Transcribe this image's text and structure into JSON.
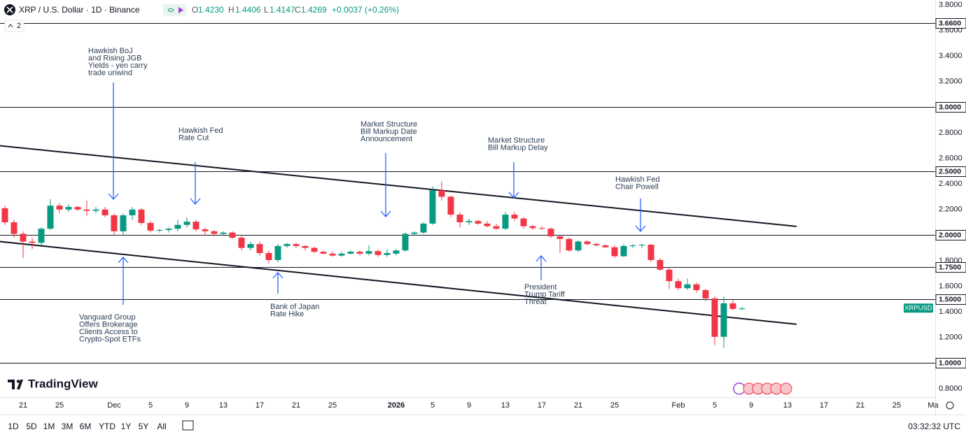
{
  "header": {
    "symbol": "XRP / U.S. Dollar · 1D · Binance",
    "o_label": "O",
    "o": "1.4230",
    "h_label": "H",
    "h": "1.4406",
    "l_label": "L",
    "l": "1.4147",
    "c_label": "C",
    "c": "1.4269",
    "change": "+0.0037 (+0.26%)",
    "indicators": "2"
  },
  "logo": "TradingView",
  "toolbar": {
    "ranges": [
      "1D",
      "5D",
      "1M",
      "3M",
      "6M",
      "YTD",
      "1Y",
      "5Y",
      "All"
    ],
    "clock": "03:32:32 UTC"
  },
  "chart_data": {
    "type": "candlestick",
    "symbol_tag": "XRPUSD",
    "up_color": "#089981",
    "down_color": "#f23645",
    "x": [
      "2025-11-19",
      "2025-11-20",
      "2025-11-21",
      "2025-11-22",
      "2025-11-23",
      "2025-11-24",
      "2025-11-25",
      "2025-11-26",
      "2025-11-27",
      "2025-11-28",
      "2025-11-29",
      "2025-11-30",
      "2025-12-01",
      "2025-12-02",
      "2025-12-03",
      "2025-12-04",
      "2025-12-05",
      "2025-12-06",
      "2025-12-07",
      "2025-12-08",
      "2025-12-09",
      "2025-12-10",
      "2025-12-11",
      "2025-12-12",
      "2025-12-13",
      "2025-12-14",
      "2025-12-15",
      "2025-12-16",
      "2025-12-17",
      "2025-12-18",
      "2025-12-19",
      "2025-12-20",
      "2025-12-21",
      "2025-12-22",
      "2025-12-23",
      "2025-12-24",
      "2025-12-25",
      "2025-12-26",
      "2025-12-27",
      "2025-12-28",
      "2025-12-29",
      "2025-12-30",
      "2025-12-31",
      "2026-01-01",
      "2026-01-02",
      "2026-01-03",
      "2026-01-04",
      "2026-01-05",
      "2026-01-06",
      "2026-01-07",
      "2026-01-08",
      "2026-01-09",
      "2026-01-10",
      "2026-01-11",
      "2026-01-12",
      "2026-01-13",
      "2026-01-14",
      "2026-01-15",
      "2026-01-16",
      "2026-01-17",
      "2026-01-18",
      "2026-01-19",
      "2026-01-20",
      "2026-01-21",
      "2026-01-22",
      "2026-01-23",
      "2026-01-24",
      "2026-01-25",
      "2026-01-26",
      "2026-01-27",
      "2026-01-28",
      "2026-01-29",
      "2026-01-30",
      "2026-01-31",
      "2026-02-01",
      "2026-02-02",
      "2026-02-03",
      "2026-02-04",
      "2026-02-05",
      "2026-02-06",
      "2026-02-07",
      "2026-02-08"
    ],
    "open": [
      2.21,
      2.1,
      2.01,
      1.95,
      1.94,
      2.05,
      2.23,
      2.2,
      2.22,
      2.2,
      2.19,
      2.2,
      2.155,
      2.03,
      2.155,
      2.2,
      2.095,
      2.035,
      2.04,
      2.05,
      2.08,
      2.105,
      2.045,
      2.03,
      2.01,
      2.02,
      1.98,
      1.9,
      1.93,
      1.86,
      1.805,
      1.915,
      1.93,
      1.915,
      1.9,
      1.87,
      1.855,
      1.84,
      1.855,
      1.87,
      1.855,
      1.875,
      1.845,
      1.855,
      1.88,
      2.01,
      2.02,
      2.09,
      2.35,
      2.3,
      2.16,
      2.1,
      2.11,
      2.09,
      2.07,
      2.05,
      2.16,
      2.13,
      2.07,
      2.055,
      2.05,
      1.99,
      1.97,
      1.88,
      1.95,
      1.93,
      1.92,
      1.905,
      1.835,
      1.915,
      1.92,
      1.925,
      1.805,
      1.73,
      1.64,
      1.585,
      1.615,
      1.57,
      1.505,
      1.205,
      1.467,
      1.423
    ],
    "high": [
      2.23,
      2.12,
      2.03,
      1.98,
      2.06,
      2.28,
      2.25,
      2.24,
      2.23,
      2.27,
      2.22,
      2.22,
      2.17,
      2.17,
      2.22,
      2.21,
      2.11,
      2.05,
      2.06,
      2.12,
      2.14,
      2.12,
      2.06,
      2.04,
      2.03,
      2.03,
      2.0,
      1.95,
      1.95,
      1.88,
      1.93,
      1.94,
      1.94,
      1.92,
      1.91,
      1.88,
      1.87,
      1.87,
      1.88,
      1.88,
      1.92,
      1.89,
      1.89,
      1.89,
      2.02,
      2.03,
      2.1,
      2.38,
      2.42,
      2.31,
      2.18,
      2.13,
      2.12,
      2.11,
      2.09,
      2.18,
      2.18,
      2.14,
      2.08,
      2.07,
      2.06,
      2.0,
      1.98,
      1.96,
      1.96,
      1.94,
      1.93,
      1.92,
      1.93,
      1.93,
      1.93,
      1.93,
      1.82,
      1.75,
      1.66,
      1.66,
      1.63,
      1.58,
      1.52,
      1.52,
      1.49,
      1.4406
    ],
    "low": [
      2.08,
      1.98,
      1.82,
      1.89,
      1.92,
      2.04,
      2.17,
      2.18,
      2.19,
      2.15,
      2.17,
      2.14,
      2.0,
      2.0,
      2.12,
      2.08,
      2.02,
      2.02,
      2.02,
      2.03,
      2.06,
      2.03,
      2.0,
      1.99,
      2.0,
      1.97,
      1.88,
      1.88,
      1.84,
      1.78,
      1.79,
      1.9,
      1.9,
      1.88,
      1.86,
      1.85,
      1.83,
      1.83,
      1.85,
      1.84,
      1.84,
      1.83,
      1.83,
      1.84,
      1.87,
      2.0,
      2.01,
      2.08,
      2.27,
      2.14,
      2.06,
      2.08,
      2.08,
      2.06,
      2.04,
      2.04,
      2.11,
      2.05,
      2.04,
      2.04,
      1.98,
      1.86,
      1.87,
      1.87,
      1.92,
      1.91,
      1.9,
      1.82,
      1.83,
      1.9,
      1.9,
      1.79,
      1.72,
      1.58,
      1.57,
      1.57,
      1.55,
      1.48,
      1.14,
      1.12,
      1.41,
      1.4147
    ],
    "close": [
      2.1,
      2.01,
      1.95,
      1.94,
      2.05,
      2.23,
      2.2,
      2.22,
      2.2,
      2.19,
      2.2,
      2.155,
      2.03,
      2.155,
      2.2,
      2.095,
      2.035,
      2.04,
      2.05,
      2.08,
      2.105,
      2.045,
      2.03,
      2.01,
      2.02,
      1.98,
      1.9,
      1.93,
      1.86,
      1.805,
      1.915,
      1.93,
      1.915,
      1.9,
      1.87,
      1.855,
      1.84,
      1.855,
      1.87,
      1.855,
      1.875,
      1.845,
      1.86,
      1.88,
      2.01,
      2.02,
      2.09,
      2.35,
      2.3,
      2.16,
      2.1,
      2.11,
      2.09,
      2.07,
      2.05,
      2.16,
      2.13,
      2.07,
      2.055,
      2.05,
      1.99,
      1.97,
      1.88,
      1.95,
      1.93,
      1.92,
      1.905,
      1.835,
      1.915,
      1.92,
      1.925,
      1.805,
      1.73,
      1.64,
      1.585,
      1.615,
      1.57,
      1.505,
      1.205,
      1.467,
      1.423,
      1.4269
    ],
    "ylim": [
      0.734,
      3.838
    ],
    "yticks": [
      {
        "value": 3.8,
        "label": "3.8000"
      },
      {
        "value": 3.6,
        "label": "3.6000"
      },
      {
        "value": 3.4,
        "label": "3.4000"
      },
      {
        "value": 3.2,
        "label": "3.2000"
      },
      {
        "value": 3.0,
        "label": "3.0000"
      },
      {
        "value": 2.8,
        "label": "2.8000"
      },
      {
        "value": 2.6,
        "label": "2.6000"
      },
      {
        "value": 2.4,
        "label": "2.4000"
      },
      {
        "value": 2.2,
        "label": "2.2000"
      },
      {
        "value": 2.0,
        "label": "2.0000"
      },
      {
        "value": 1.8,
        "label": "1.8000"
      },
      {
        "value": 1.6,
        "label": "1.6000"
      },
      {
        "value": 1.4,
        "label": "1.4000"
      },
      {
        "value": 1.2,
        "label": "1.2000"
      },
      {
        "value": 1.0,
        "label": "1.0000"
      },
      {
        "value": 0.8,
        "label": "0.8000"
      }
    ],
    "xticks": [
      {
        "value": "2025-11-21",
        "label": "21"
      },
      {
        "value": "2025-11-25",
        "label": "25"
      },
      {
        "value": "2025-12-01",
        "label": "Dec"
      },
      {
        "value": "2025-12-05",
        "label": "5"
      },
      {
        "value": "2025-12-09",
        "label": "9"
      },
      {
        "value": "2025-12-13",
        "label": "13"
      },
      {
        "value": "2025-12-17",
        "label": "17"
      },
      {
        "value": "2025-12-21",
        "label": "21"
      },
      {
        "value": "2025-12-25",
        "label": "25"
      },
      {
        "value": "2026-01-01",
        "label": "2026"
      },
      {
        "value": "2026-01-05",
        "label": "5"
      },
      {
        "value": "2026-01-09",
        "label": "9"
      },
      {
        "value": "2026-01-13",
        "label": "13"
      },
      {
        "value": "2026-01-17",
        "label": "17"
      },
      {
        "value": "2026-01-21",
        "label": "21"
      },
      {
        "value": "2026-01-25",
        "label": "25"
      },
      {
        "value": "2026-02-01",
        "label": "Feb"
      },
      {
        "value": "2026-02-05",
        "label": "5"
      },
      {
        "value": "2026-02-09",
        "label": "9"
      },
      {
        "value": "2026-02-13",
        "label": "13"
      },
      {
        "value": "2026-02-17",
        "label": "17"
      },
      {
        "value": "2026-02-21",
        "label": "21"
      },
      {
        "value": "2026-02-25",
        "label": "25"
      },
      {
        "value": "2026-03-01",
        "label": "Ma"
      }
    ],
    "levels": [
      {
        "value": 3.66,
        "label": "3.6600"
      },
      {
        "value": 3.0,
        "label": "3.0000"
      },
      {
        "value": 2.5,
        "label": "2.5000"
      },
      {
        "value": 2.0,
        "label": "2.0000"
      },
      {
        "value": 1.75,
        "label": "1.7500"
      },
      {
        "value": 1.5,
        "label": "1.5000"
      },
      {
        "value": 1.0,
        "label": "1.0000"
      }
    ],
    "trendlines": [
      {
        "x": [
          "2025-11-18",
          "2026-02-14"
        ],
        "values": [
          2.702,
          2.068
        ]
      },
      {
        "x": [
          "2025-11-18",
          "2026-02-14"
        ],
        "values": [
          1.953,
          1.303
        ]
      }
    ],
    "annotations": [
      {
        "lines": [
          "Hawkish BoJ",
          "and Rising JGB",
          "Yields - yen carry",
          "trade unwind"
        ]
      },
      {
        "lines": [
          "Hawkish Fed",
          "Rate Cut"
        ]
      },
      {
        "lines": [
          "Market Structure",
          "Bill Markup Date",
          "Announcement"
        ]
      },
      {
        "lines": [
          "Market Structure",
          "Bill Markup Delay"
        ]
      },
      {
        "lines": [
          "Hawkish Fed",
          "Chair Powell"
        ]
      },
      {
        "lines": [
          "Vanguard Group",
          "Offers Brokerage",
          "Clients Access to",
          "Crypto-Spot ETFs"
        ]
      },
      {
        "lines": [
          "Bank of Japan",
          "Rate Hike"
        ]
      },
      {
        "lines": [
          "President",
          "Trump Tariff",
          "Threat"
        ]
      }
    ]
  }
}
